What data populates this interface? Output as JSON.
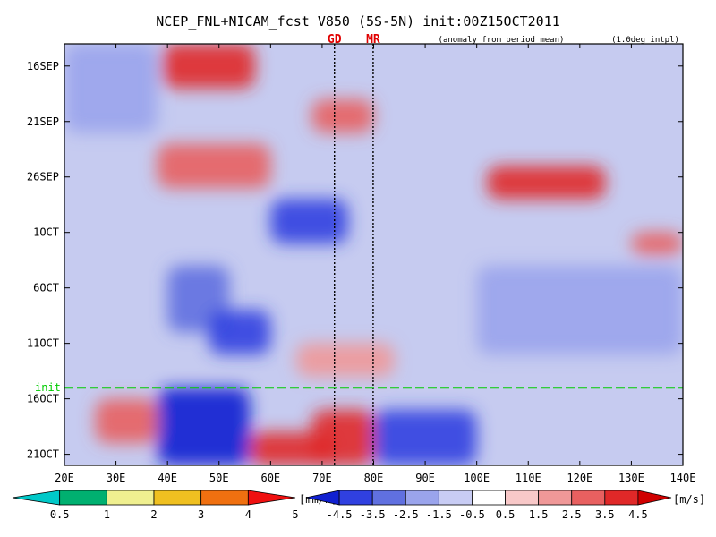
{
  "chart_data": {
    "type": "heatmap",
    "title": "NCEP_FNL+NICAM_fcst V850 (5S-5N) init:00Z15OCT2011",
    "subtitle_left": "(anomaly from period mean)",
    "subtitle_right": "(1.0deg intpl)",
    "x_axis": {
      "range": [
        20,
        140
      ],
      "ticks": [
        20,
        30,
        40,
        50,
        60,
        70,
        80,
        90,
        100,
        110,
        120,
        130,
        140
      ],
      "tick_labels": [
        "20E",
        "30E",
        "40E",
        "50E",
        "60E",
        "70E",
        "80E",
        "90E",
        "100E",
        "110E",
        "120E",
        "130E",
        "140E"
      ]
    },
    "y_axis": {
      "range": [
        "14SEP2011",
        "22OCT2011"
      ],
      "direction": "down",
      "ticks": [
        "16SEP2011",
        "21SEP2011",
        "26SEP2011",
        "01OCT2011",
        "06OCT2011",
        "11OCT2011",
        "16OCT2011",
        "21OCT2011"
      ],
      "tick_labels": [
        "16SEP",
        "21SEP",
        "26SEP",
        "1OCT",
        "6OCT",
        "11OCT",
        "16OCT",
        "21OCT"
      ]
    },
    "markers": [
      {
        "label": "GD",
        "lon": 72.4,
        "color": "#e00000"
      },
      {
        "label": "MR",
        "lon": 79.9,
        "color": "#e00000"
      }
    ],
    "init_line": {
      "label": "init",
      "date": "15OCT2011",
      "color": "#00cc00"
    },
    "precip_colorbar": {
      "levels": [
        "0.5",
        "1",
        "2",
        "3",
        "4",
        "5"
      ],
      "unit": "[mm/h]",
      "colors": [
        "#00c8c8",
        "#00b070",
        "#f0f090",
        "#f0c020",
        "#f07010",
        "#f01010"
      ]
    },
    "wind_colorbar": {
      "levels": [
        "-4.5",
        "-3.5",
        "-2.5",
        "-1.5",
        "-0.5",
        "0.5",
        "1.5",
        "2.5",
        "3.5",
        "4.5"
      ],
      "unit": "[m/s]",
      "colors": [
        "#1020d0",
        "#3040e0",
        "#6070e0",
        "#9aa4ec",
        "#c8ccf4",
        "#ffffff",
        "#f8c8c8",
        "#f09898",
        "#e86060",
        "#e02828",
        "#d00000"
      ]
    },
    "anomaly_regions": [
      {
        "sign": "positive",
        "lon": [
          39,
          57
        ],
        "date": [
          "14SEP2011",
          "18SEP2011"
        ],
        "value": 4.0
      },
      {
        "sign": "positive",
        "lon": [
          68,
          80
        ],
        "date": [
          "19SEP2011",
          "22SEP2011"
        ],
        "value": 3.5
      },
      {
        "sign": "positive",
        "lon": [
          38,
          60
        ],
        "date": [
          "23SEP2011",
          "27SEP2011"
        ],
        "value": 3.0
      },
      {
        "sign": "positive",
        "lon": [
          102,
          125
        ],
        "date": [
          "25SEP2011",
          "28SEP2011"
        ],
        "value": 4.0
      },
      {
        "sign": "positive",
        "lon": [
          130,
          140
        ],
        "date": [
          "01OCT2011",
          "03OCT2011"
        ],
        "value": 3.5
      },
      {
        "sign": "positive",
        "lon": [
          65,
          84
        ],
        "date": [
          "11OCT2011",
          "14OCT2011"
        ],
        "value": 2.5
      },
      {
        "sign": "positive",
        "lon": [
          68,
          80
        ],
        "date": [
          "17OCT2011",
          "22OCT2011"
        ],
        "value": 4.0
      },
      {
        "sign": "positive",
        "lon": [
          56,
          72
        ],
        "date": [
          "19OCT2011",
          "22OCT2011"
        ],
        "value": 4.5
      },
      {
        "sign": "positive",
        "lon": [
          26,
          38
        ],
        "date": [
          "16OCT2011",
          "20OCT2011"
        ],
        "value": 3.0
      },
      {
        "sign": "negative",
        "lon": [
          60,
          75
        ],
        "date": [
          "28SEP2011",
          "02OCT2011"
        ],
        "value": -3.5
      },
      {
        "sign": "negative",
        "lon": [
          40,
          52
        ],
        "date": [
          "04OCT2011",
          "10OCT2011"
        ],
        "value": -3.0
      },
      {
        "sign": "negative",
        "lon": [
          48,
          60
        ],
        "date": [
          "08OCT2011",
          "12OCT2011"
        ],
        "value": -3.5
      },
      {
        "sign": "negative",
        "lon": [
          38,
          56
        ],
        "date": [
          "15OCT2011",
          "22OCT2011"
        ],
        "value": -4.5
      },
      {
        "sign": "negative",
        "lon": [
          80,
          100
        ],
        "date": [
          "17OCT2011",
          "22OCT2011"
        ],
        "value": -3.5
      },
      {
        "sign": "negative",
        "lon": [
          100,
          140
        ],
        "date": [
          "04OCT2011",
          "12OCT2011"
        ],
        "value": -2.0
      },
      {
        "sign": "negative",
        "lon": [
          20,
          38
        ],
        "date": [
          "14SEP2011",
          "22SEP2011"
        ],
        "value": -1.5
      }
    ]
  }
}
